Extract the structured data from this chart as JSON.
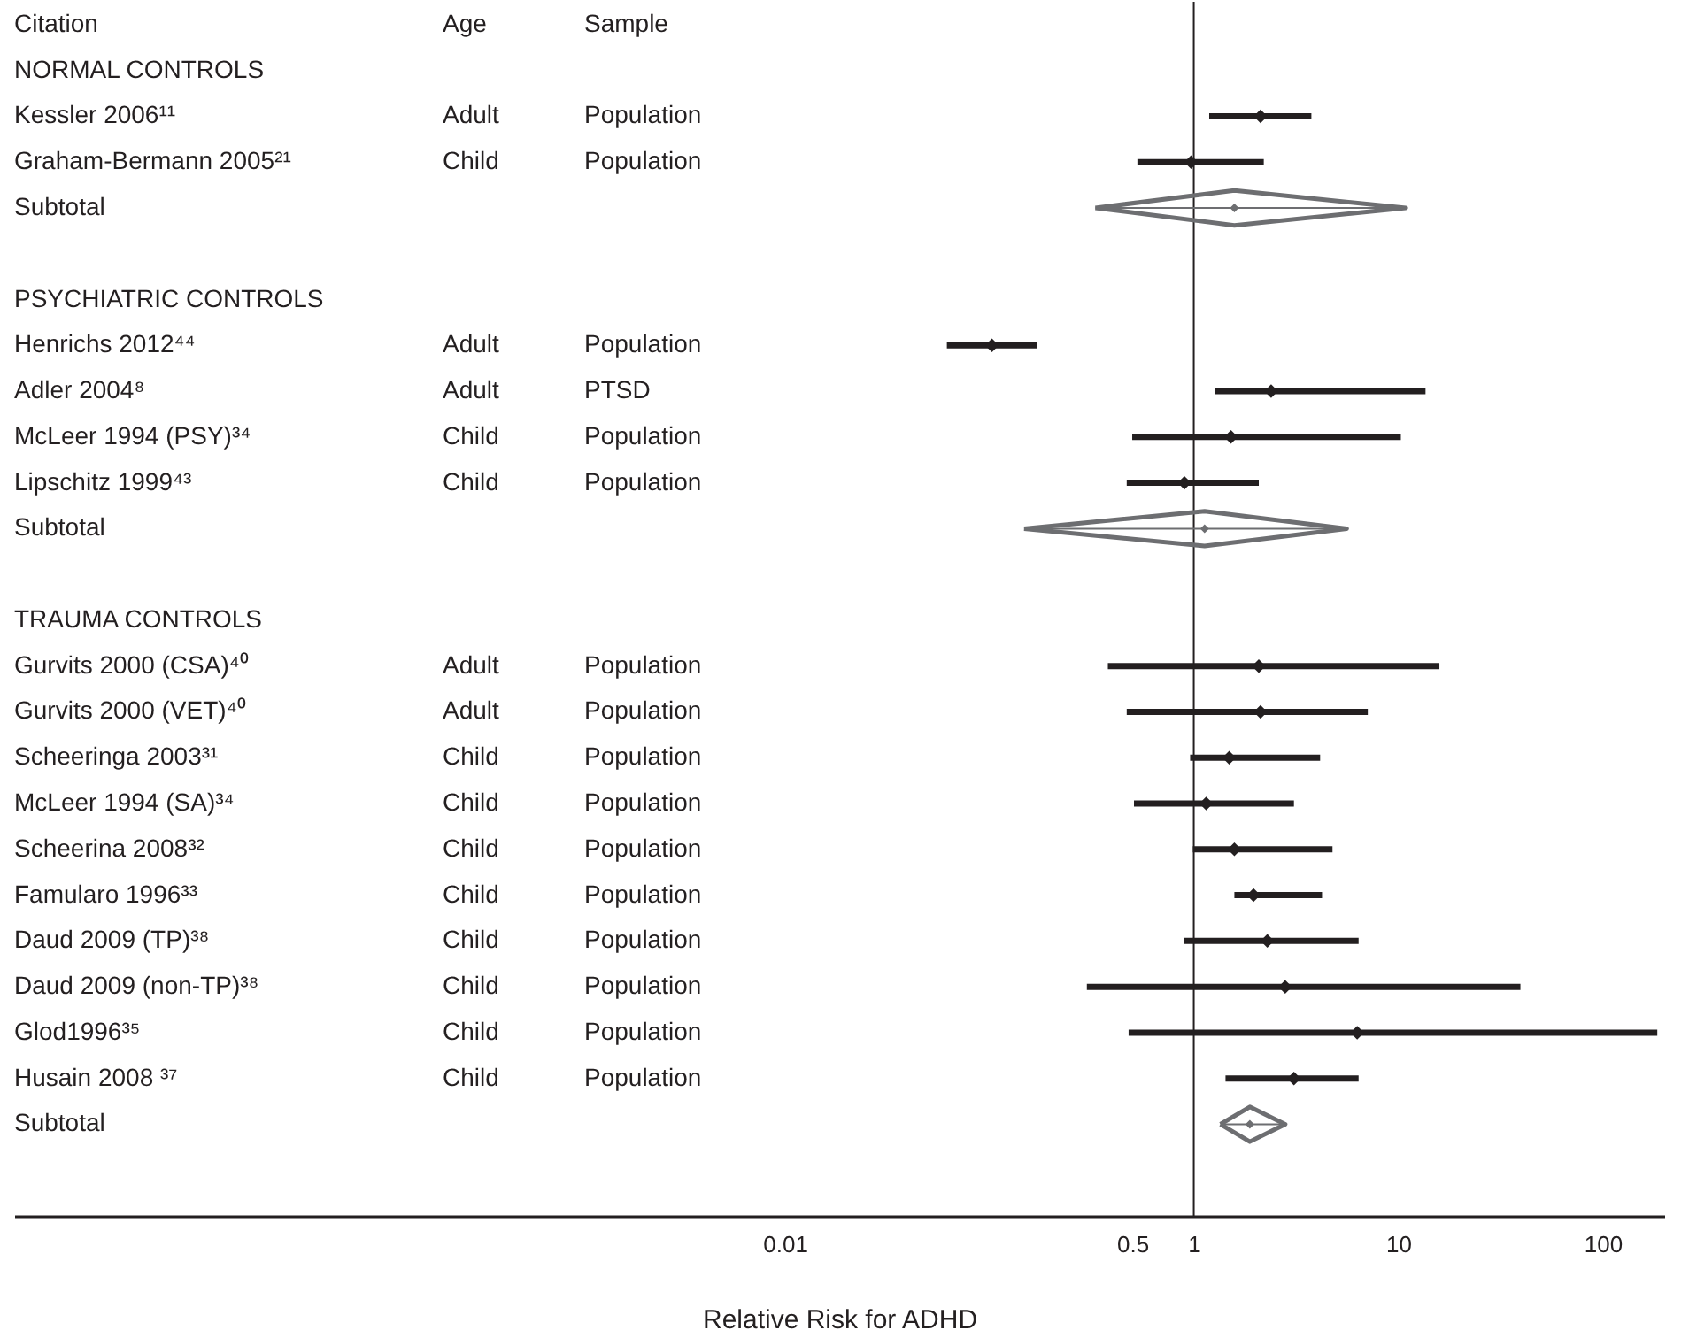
{
  "chart_data": {
    "type": "scatter",
    "orientation": "horizontal",
    "xlabel": "Relative Risk for ADHD",
    "log": "x",
    "grid": false,
    "xlim": [
      1.7e-06,
      200
    ],
    "xticks": [
      0.01,
      0.5,
      1,
      10,
      100
    ],
    "categories": [
      "NORMAL CONTROLS",
      "Kessler 2006¹¹",
      "Graham-Bermann 2005²¹",
      "Subtotal",
      null,
      "PSYCHIATRIC CONTROLS",
      "Henrichs 2012⁴⁴",
      "Adler 2004⁸",
      "McLeer 1994 (PSY)³⁴",
      "Lipschitz 1999⁴³",
      "Subtotal",
      null,
      "TRAUMA CONTROLS",
      "Gurvits 2000 (CSA)⁴⁰",
      "Gurvits 2000 (VET)⁴⁰",
      "Scheeringa 2003³¹",
      "McLeer 1994 (SA)³⁴",
      "Scheerina 2008³²",
      "Famularo 1996³³",
      "Daud 2009 (TP)³⁸",
      "Daud 2009 (non-TP)³⁸",
      "Glod1996³⁵",
      "Husain 2008 ³⁷",
      "Subtotal"
    ],
    "series": [
      {
        "marker": "diamond",
        "color": "#231f20",
        "values": [
          null,
          2.12,
          0.97,
          null,
          null,
          null,
          0.103,
          2.39,
          1.52,
          0.9,
          null,
          null,
          null,
          2.08,
          2.12,
          1.49,
          1.15,
          1.58,
          1.96,
          2.29,
          2.8,
          6.3,
          3.09,
          null
        ],
        "errors": [
          null,
          [
            1.19,
            3.76
          ],
          [
            0.53,
            2.2
          ],
          null,
          null,
          null,
          [
            0.062,
            0.171
          ],
          [
            1.27,
            13.6
          ],
          [
            0.5,
            10.3
          ],
          [
            0.47,
            2.08
          ],
          null,
          null,
          null,
          [
            0.38,
            15.9
          ],
          [
            0.47,
            7.1
          ],
          [
            0.96,
            4.15
          ],
          [
            0.51,
            3.09
          ],
          [
            0.99,
            4.77
          ],
          [
            1.58,
            4.24
          ],
          [
            0.9,
            6.4
          ],
          [
            0.3,
            39.6
          ],
          [
            0.48,
            185
          ],
          [
            1.43,
            6.4
          ],
          null
        ]
      },
      {
        "type": "scatter",
        "marker": "diamond",
        "color": "#6d6e71",
        "values": [
          null,
          null,
          null,
          1.58,
          null,
          null,
          null,
          null,
          null,
          null,
          1.13,
          null,
          null,
          null,
          null,
          null,
          null,
          null,
          null,
          null,
          null,
          null,
          null,
          1.88
        ],
        "errors": [
          null,
          null,
          null,
          [
            0.33,
            10.9
          ],
          null,
          null,
          null,
          null,
          null,
          null,
          [
            0.148,
            5.6
          ],
          null,
          null,
          null,
          null,
          null,
          null,
          null,
          null,
          null,
          null,
          null,
          null,
          [
            1.35,
            2.8
          ]
        ]
      }
    ],
    "ref_lines": [
      {
        "axis": "x",
        "value": 1,
        "color": "#231f20"
      }
    ],
    "annotations": [
      "Citation",
      "Age",
      "Sample",
      "Adult",
      "Population",
      "Child",
      "Population",
      "Adult",
      "Population",
      "Adult",
      "PTSD",
      "Child",
      "Population",
      "Child",
      "Population",
      "Adult",
      "Population",
      "Adult",
      "Population",
      "Child",
      "Population",
      "Child",
      "Population",
      "Child",
      "Population",
      "Child",
      "Population",
      "Child",
      "Population",
      "Child",
      "Population",
      "Child",
      "Population",
      "Child",
      "Population"
    ]
  }
}
